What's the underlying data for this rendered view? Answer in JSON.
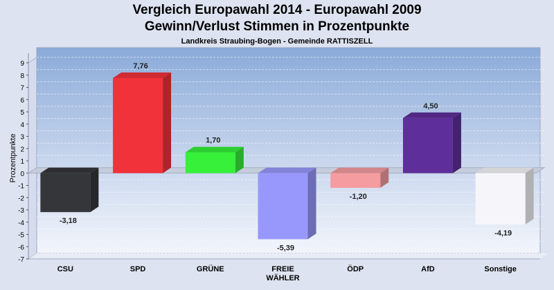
{
  "chart_data": {
    "type": "bar",
    "title": "Vergleich Europawahl 2014 - Europawahl 2009",
    "subtitle": "Gewinn/Verlust Stimmen in Prozentpunkte",
    "caption": "Landkreis Straubing-Bogen - Gemeinde RATTISZELL",
    "ylabel": "Prozentpunkte",
    "xlabel": "",
    "ylim": [
      -7,
      9
    ],
    "yticks": [
      9,
      8,
      7,
      6,
      5,
      4,
      3,
      2,
      1,
      0,
      -1,
      -2,
      -3,
      -4,
      -5,
      -6,
      -7
    ],
    "categories": [
      "CSU",
      "SPD",
      "GRÜNE",
      "FREIE WÄHLER",
      "ÖDP",
      "AfD",
      "Sonstige"
    ],
    "category_lines": [
      [
        "CSU"
      ],
      [
        "SPD"
      ],
      [
        "GRÜNE"
      ],
      [
        "FREIE",
        "WÄHLER"
      ],
      [
        "ÖDP"
      ],
      [
        "AfD"
      ],
      [
        "Sonstige"
      ]
    ],
    "values": [
      -3.18,
      7.76,
      1.7,
      -5.39,
      -1.2,
      4.5,
      -4.19
    ],
    "value_labels": [
      "-3,18",
      "7,76",
      "1,70",
      "-5,39",
      "-1,20",
      "4,50",
      "-4,19"
    ],
    "colors": [
      "#35363a",
      "#f2323a",
      "#36f03a",
      "#9898fc",
      "#f49ca0",
      "#5e2f9a",
      "#f6f6fa"
    ],
    "grid": true,
    "legend": "none"
  }
}
